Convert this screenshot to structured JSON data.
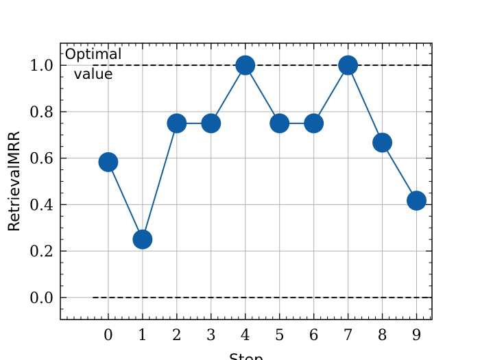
{
  "chart_data": {
    "type": "line",
    "xlabel": "Step",
    "ylabel": "RetrievalMRR",
    "x": [
      0,
      1,
      2,
      3,
      4,
      5,
      6,
      7,
      8,
      9
    ],
    "series": [
      {
        "values": [
          0.583,
          0.25,
          0.75,
          0.75,
          1.0,
          0.75,
          0.75,
          1.0,
          0.667,
          0.417
        ],
        "color": "#0C5DA5",
        "marker": "circle"
      }
    ],
    "xlim": [
      -1.4,
      9.45
    ],
    "ylim": [
      -0.095,
      1.095
    ],
    "xticks": [
      "0",
      "1",
      "2",
      "3",
      "4",
      "5",
      "6",
      "7",
      "8",
      "9"
    ],
    "yticks": [
      "0.0",
      "0.2",
      "0.4",
      "0.6",
      "0.8",
      "1.0"
    ],
    "grid": true,
    "reference_lines": [
      {
        "y": 1.0,
        "x_range": [
          -0.45,
          9.45
        ],
        "style": "dashed",
        "color": "#000000"
      },
      {
        "y": 0.0,
        "x_range": [
          -0.45,
          9.45
        ],
        "style": "dashed",
        "color": "#000000"
      }
    ],
    "annotations": [
      {
        "line1": "Optimal",
        "line2": "value"
      }
    ]
  }
}
